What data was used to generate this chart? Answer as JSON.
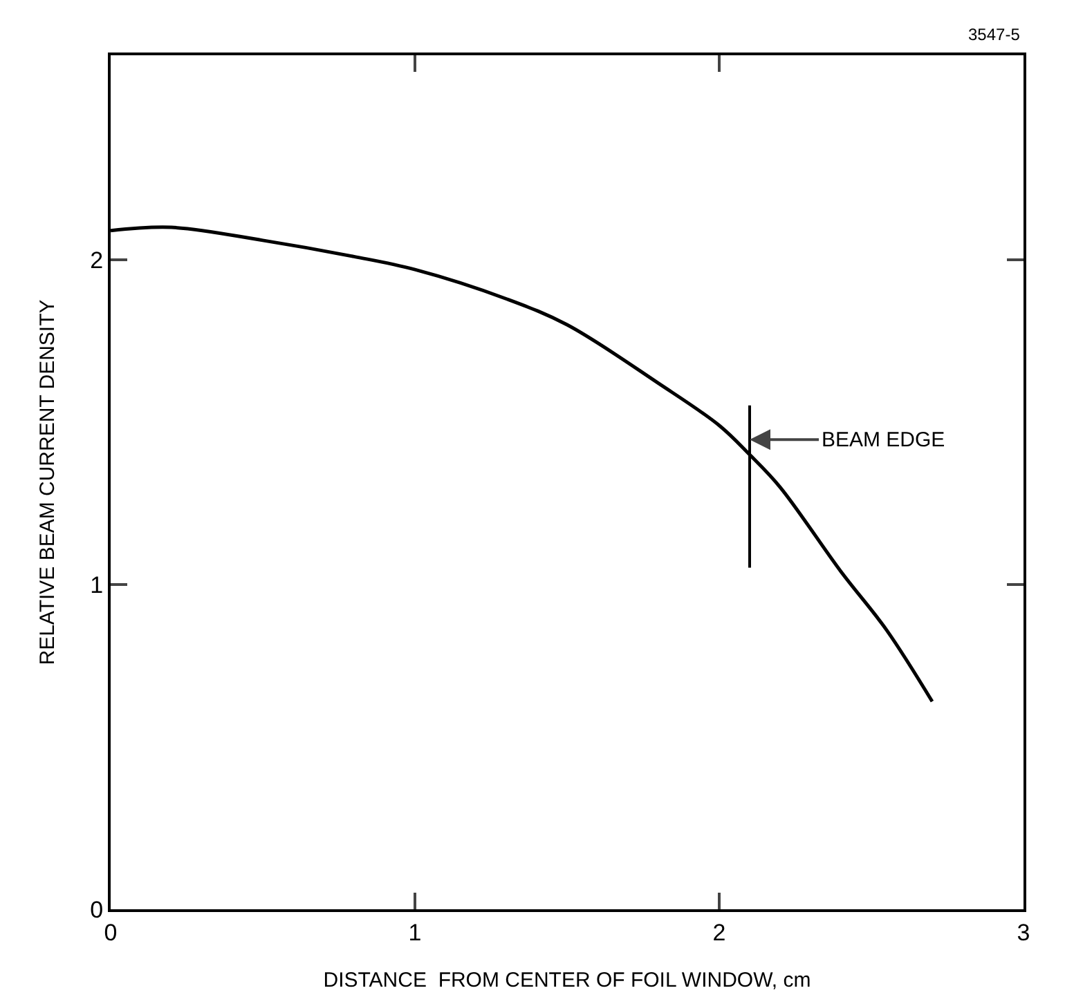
{
  "chart_data": {
    "type": "line",
    "xlabel": "DISTANCE  FROM CENTER OF FOIL WINDOW, cm",
    "ylabel": "RELATIVE BEAM CURRENT DENSITY",
    "annotations": [
      "3547-5"
    ],
    "x": [
      0,
      0.2,
      0.5,
      0.8,
      1,
      1.3,
      1.5,
      1.8,
      2,
      2.1,
      2.2,
      2.4,
      2.55,
      2.7
    ],
    "series": [
      {
        "color": "#000000",
        "values": [
          2.09,
          2.1,
          2.06,
          2.01,
          1.97,
          1.88,
          1.8,
          1.62,
          1.49,
          1.4,
          1.3,
          1.04,
          0.86,
          0.64
        ]
      }
    ],
    "xlim": [
      0,
      3
    ],
    "ylim": [
      0,
      2.63
    ],
    "xticks": [
      0,
      1,
      2,
      3
    ],
    "yticks": [
      0,
      1,
      2
    ],
    "grid": false,
    "marker": "none",
    "line_style": "solid",
    "ref_lines": [
      {
        "axis": "x",
        "value": 2.1,
        "label": "BEAM EDGE",
        "color": "#000000"
      }
    ]
  }
}
